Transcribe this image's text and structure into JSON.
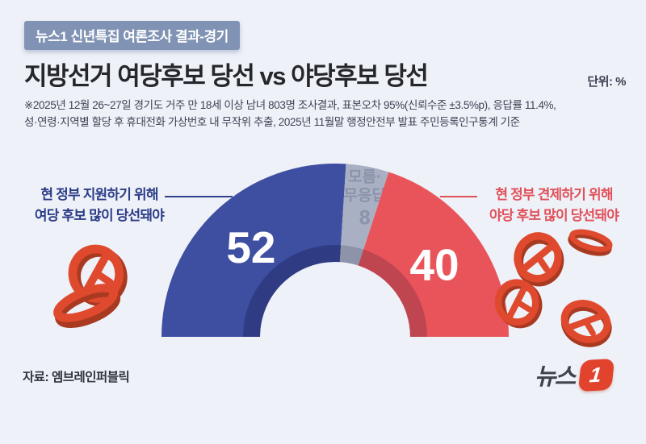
{
  "page": {
    "background": "#eef1f8"
  },
  "badge": {
    "text": "뉴스1 신년특집 여론조사 결과-경기",
    "bg": "#8093b4"
  },
  "header": {
    "title": "지방선거 여당후보 당선 vs 야당후보 당선",
    "unit_label": "단위: %"
  },
  "methodology": {
    "lines": [
      "※2025년 12월 26~27일 경기도 거주 만 18세 이상 남녀 803명 조사결과, 표본오차 95%(신뢰수준 ±3.5%p), 응답률 11.4%,",
      "성·연령·지역별 할당 후 휴대전화 가상번호 내 무작위 추출,  2025년 11월말 행정안전부 발표 주민등록인구통계 기준"
    ]
  },
  "annotations": {
    "left": {
      "line1": "현 정부 지원하기 위해",
      "line2": "여당 후보 많이 당선돼야",
      "color": "#2c3d87"
    },
    "right": {
      "line1": "현 정부 견제하기 위해",
      "line2": "야당 후보 많이 당선돼야",
      "color": "#e1515a"
    }
  },
  "chart_data": {
    "type": "half_donut",
    "unit": "%",
    "orientation": "top-semicircle",
    "segments": [
      {
        "id": "ruling-party-win",
        "value": 52,
        "color": "#3e4fa1",
        "inner_shadow": "#2f3c83",
        "value_color": "#ffffff"
      },
      {
        "id": "undecided",
        "value": 8,
        "color": "#a9b0c4",
        "inner_shadow": "#8d94a9",
        "value_color": "#8b93aa",
        "label_lines": [
          "모름·",
          "무응답"
        ],
        "label_color": "#8b93aa"
      },
      {
        "id": "opposition-win",
        "value": 40,
        "color": "#e9545b",
        "inner_shadow": "#bf4650",
        "value_color": "#ffffff"
      }
    ]
  },
  "decor": {
    "stamp_color": "#df492e",
    "stamp_shadow": "#a93a22"
  },
  "footer": {
    "source": "자료: 엠브레인퍼블릭"
  },
  "logo": {
    "text": "뉴스",
    "numeral": "1",
    "accent": "#e2432c"
  }
}
